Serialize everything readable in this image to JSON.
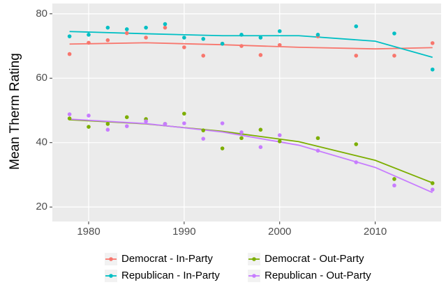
{
  "chart_data": {
    "type": "scatter",
    "y_label": "Mean Therm Rating",
    "x": [
      1978,
      1980,
      1982,
      1984,
      1986,
      1988,
      1990,
      1992,
      1994,
      1996,
      1998,
      2000,
      2004,
      2008,
      2012,
      2016
    ],
    "smooth_x": [
      1978,
      1986,
      1994,
      2002,
      2010,
      2016
    ],
    "series": [
      {
        "name": "Democrat - In-Party",
        "color": "#f8766d",
        "values": [
          67.5,
          71,
          71.8,
          74,
          72.6,
          75.7,
          69.6,
          67,
          70.7,
          70,
          67.2,
          70.3,
          73,
          67,
          67,
          70.9
        ],
        "smooth": [
          70.6,
          71,
          70.4,
          69.6,
          69.1,
          69.5
        ]
      },
      {
        "name": "Republican - In-Party",
        "color": "#00bfc4",
        "values": [
          73,
          73.5,
          75.7,
          75.2,
          75.7,
          76.8,
          72.6,
          72.2,
          70.7,
          73.5,
          72.6,
          74.6,
          73.5,
          76.1,
          73.9,
          62.7
        ],
        "smooth": [
          74.5,
          73.8,
          73.2,
          73.2,
          71.5,
          66.5
        ]
      },
      {
        "name": "Democrat - Out-Party",
        "color": "#7cae00",
        "values": [
          47.5,
          44.9,
          45.8,
          47.9,
          47.3,
          45.8,
          49,
          43.8,
          38.2,
          41.4,
          44,
          40.4,
          41.4,
          39.5,
          28.7,
          27.4
        ],
        "smooth": [
          47.1,
          45.8,
          43.5,
          40.3,
          34.5,
          27.5
        ]
      },
      {
        "name": "Republican - Out-Party",
        "color": "#c77cff",
        "values": [
          48.8,
          48.4,
          44,
          45.1,
          46.6,
          45.8,
          46,
          41.2,
          46,
          43.2,
          38.6,
          42.3,
          37.5,
          33.9,
          26.7,
          25.4
        ],
        "smooth": [
          47.3,
          45.9,
          43.3,
          39.2,
          32.3,
          24.5
        ]
      }
    ],
    "xlim": [
      1976.2,
      2016.9
    ],
    "xticks": [
      1980,
      1990,
      2000,
      2010
    ],
    "ylim": [
      15.5,
      83.2
    ],
    "yticks": [
      20,
      40,
      60,
      80
    ],
    "grid": true,
    "legend": "bottom"
  }
}
